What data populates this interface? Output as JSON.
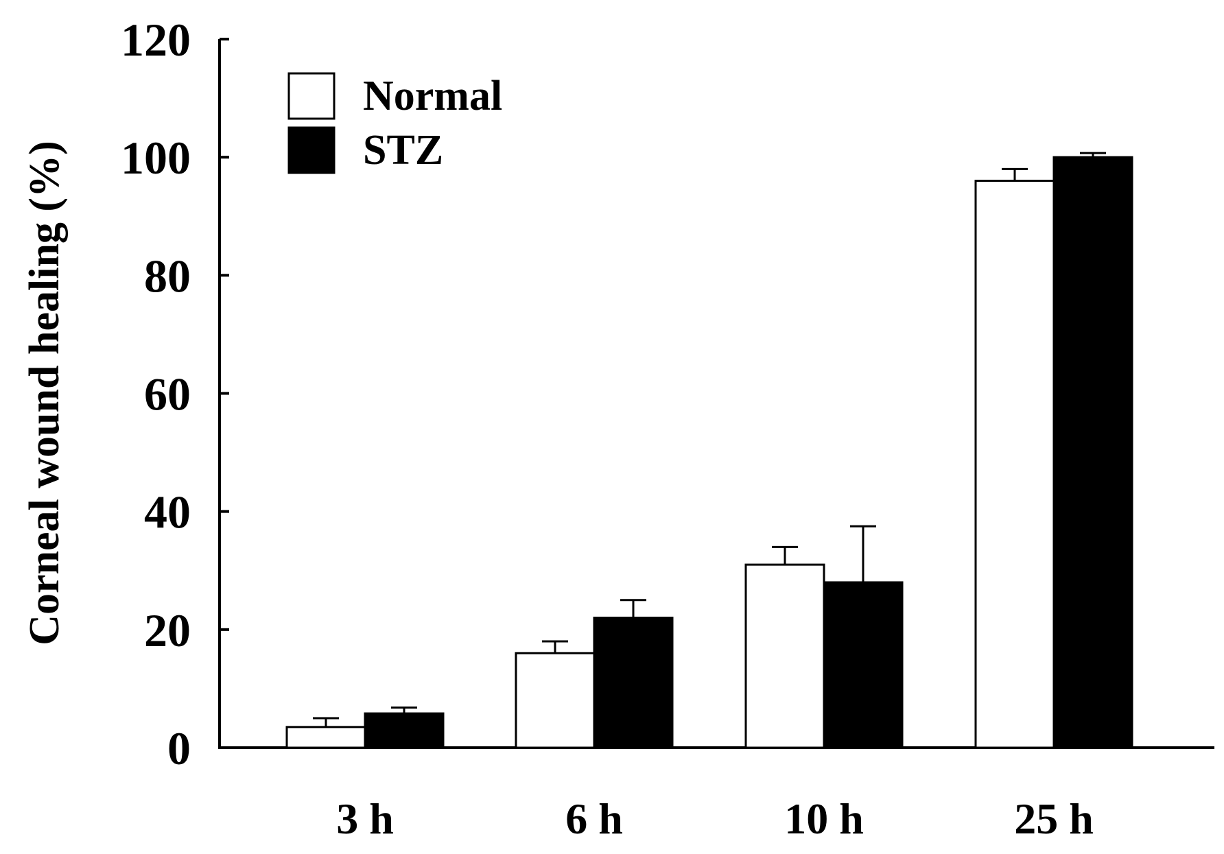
{
  "chart_data": {
    "type": "bar",
    "title": "",
    "xlabel": "",
    "ylabel": "Corneal wound healing (%)",
    "ylim": [
      0,
      120
    ],
    "yticks": [
      0,
      20,
      40,
      60,
      80,
      100,
      120
    ],
    "categories": [
      "3 h",
      "6 h",
      "10 h",
      "25 h"
    ],
    "series": [
      {
        "name": "Normal",
        "fill": "#ffffff",
        "values": [
          3.5,
          16.0,
          31.0,
          96.0
        ],
        "errors": [
          1.5,
          2.0,
          3.0,
          2.0
        ]
      },
      {
        "name": "STZ",
        "fill": "#000000",
        "values": [
          5.8,
          22.0,
          28.0,
          100.0
        ],
        "errors": [
          1.0,
          3.0,
          9.5,
          0.7
        ]
      }
    ],
    "legend": "top-left",
    "grid": false
  }
}
